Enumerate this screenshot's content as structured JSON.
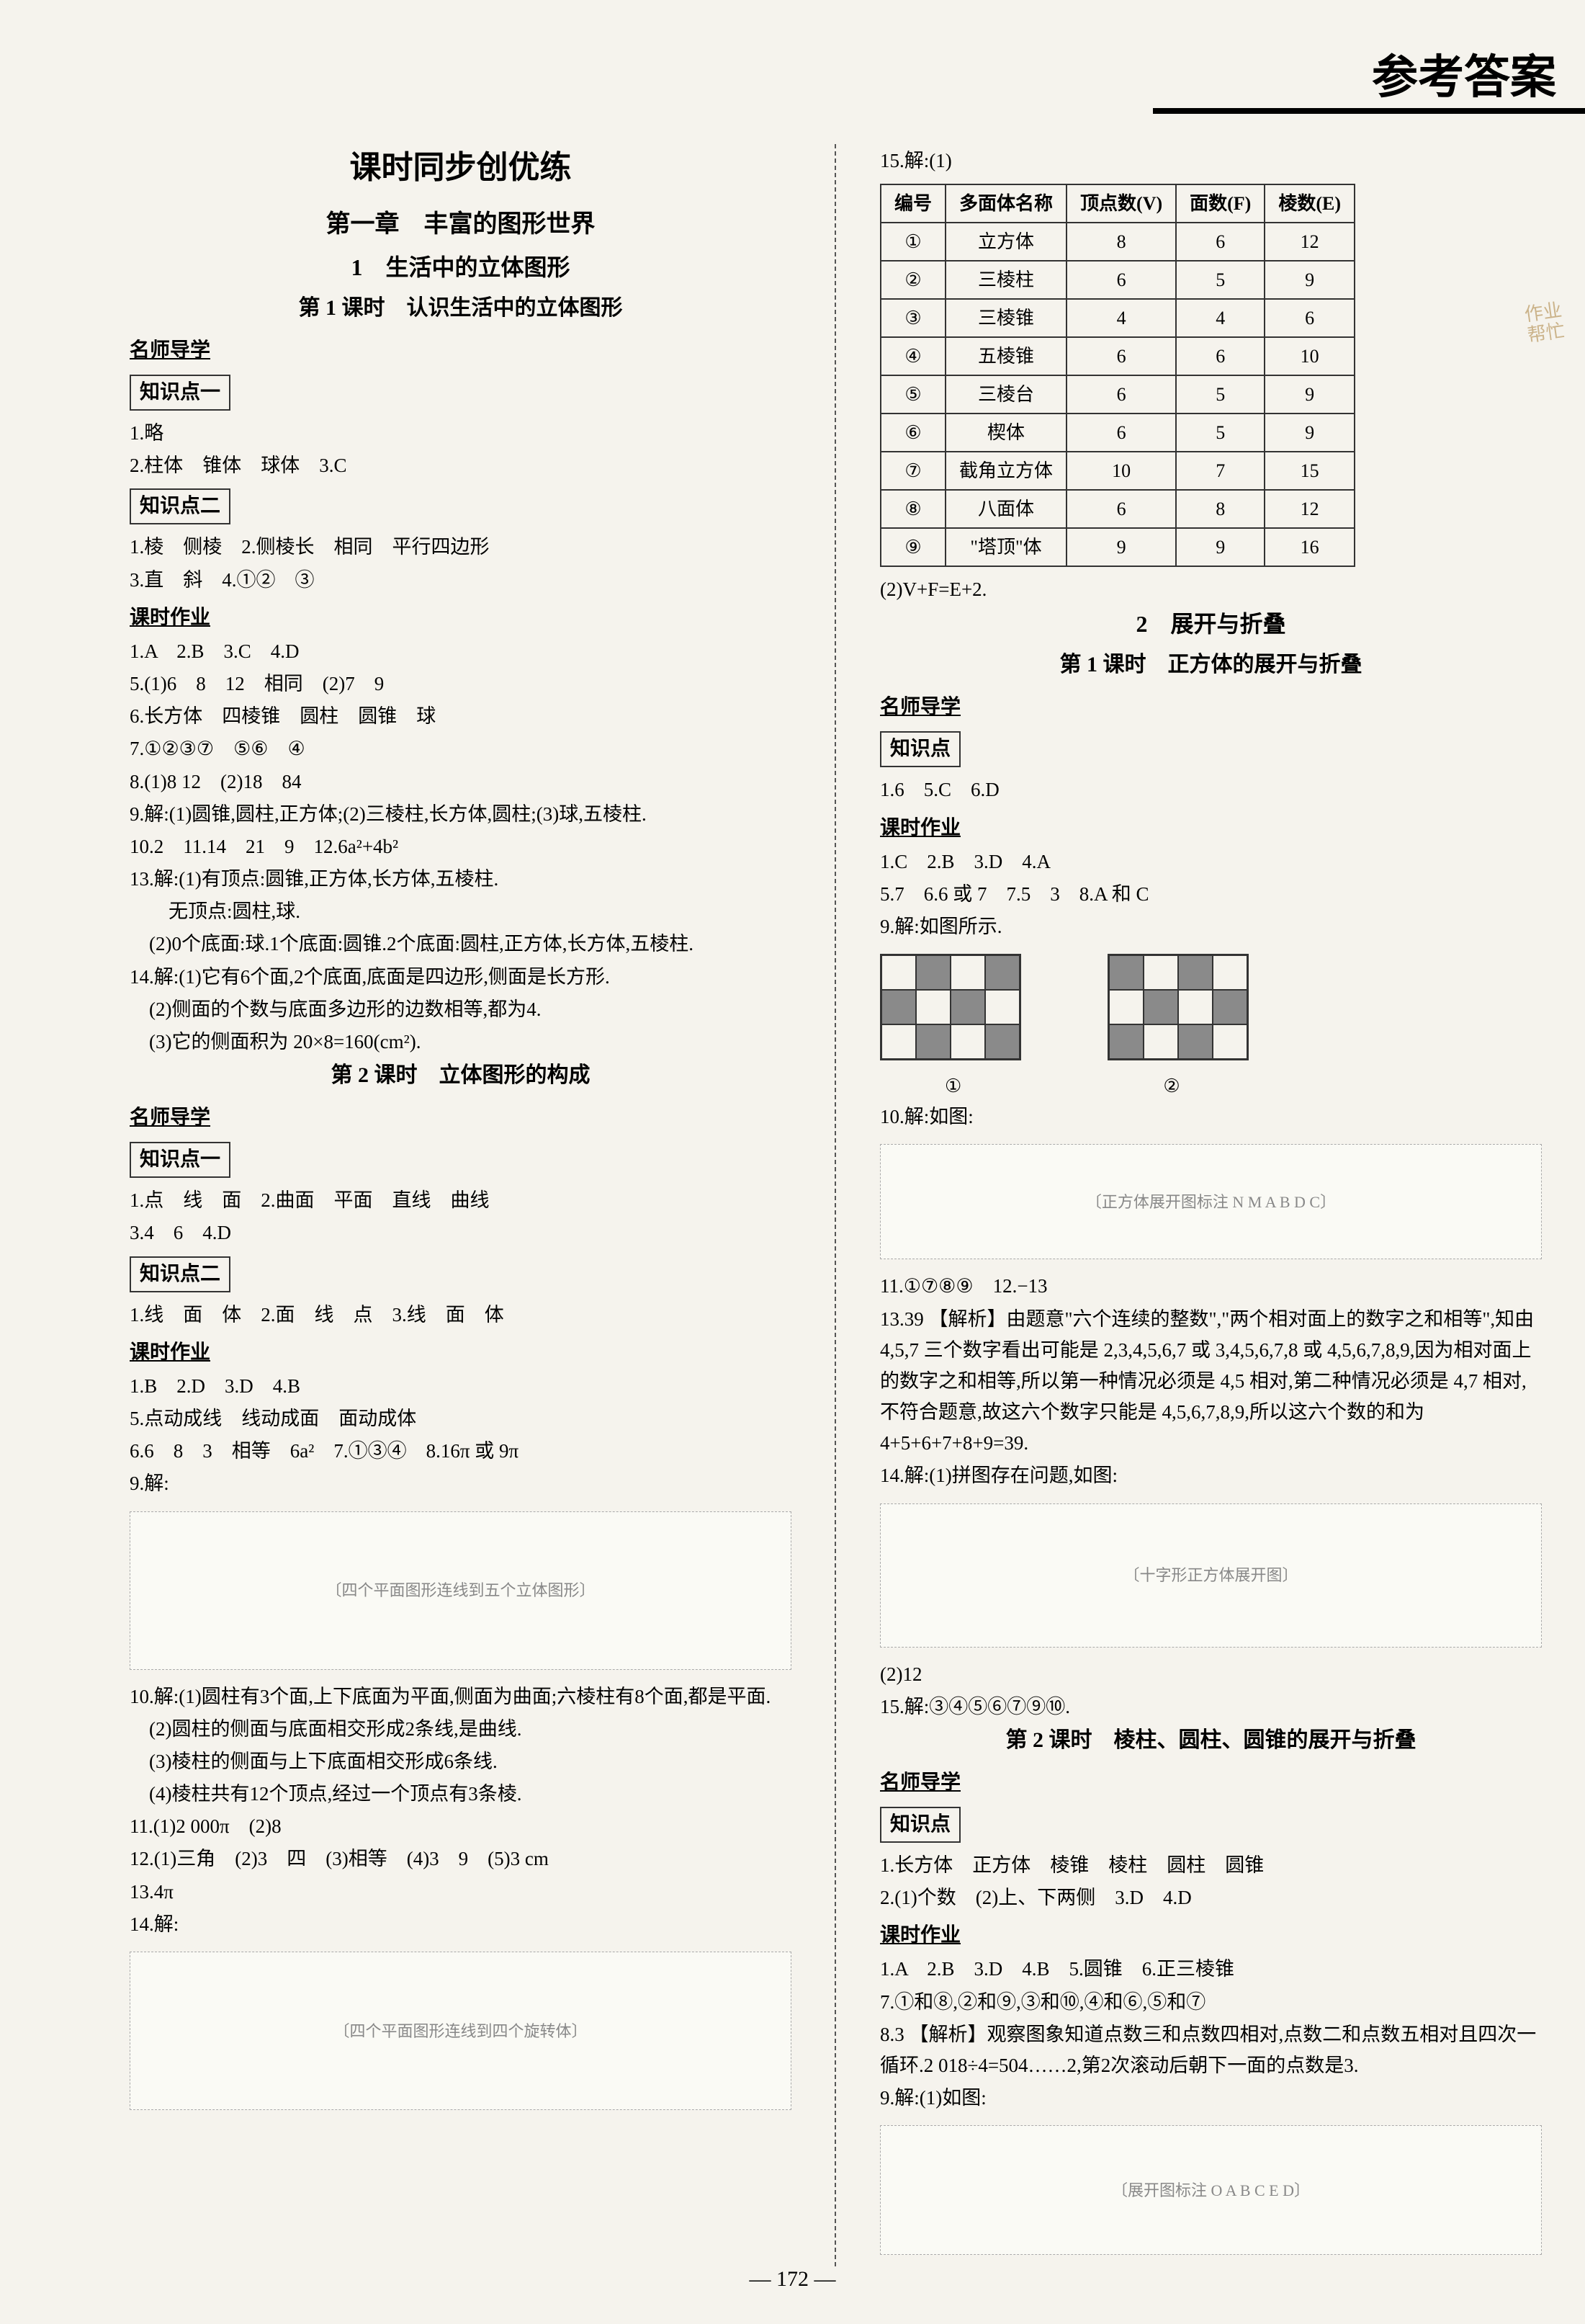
{
  "header": {
    "title": "参考答案"
  },
  "stamp": {
    "line1": "作业",
    "line2": "帮忙"
  },
  "left": {
    "main_title": "课时同步创优练",
    "chapter": "第一章　丰富的图形世界",
    "section1": "1　生活中的立体图形",
    "lesson1": "第 1 课时　认识生活中的立体图形",
    "msdx": "名师导学",
    "kp1": "知识点一",
    "l1_1": "1.略",
    "l1_2": "2.柱体　锥体　球体　3.C",
    "kp2": "知识点二",
    "l2_1": "1.棱　侧棱　2.侧棱长　相同　平行四边形",
    "l2_2": "3.直　斜　4.①②　③",
    "kszy": "课时作业",
    "hw": [
      "1.A　2.B　3.C　4.D",
      "5.(1)6　8　12　相同　(2)7　9",
      "6.长方体　四棱锥　圆柱　圆锥　球",
      "7.①②③⑦　⑤⑥　④",
      "8.(1)8 12　(2)18　84",
      "9.解:(1)圆锥,圆柱,正方体;(2)三棱柱,长方体,圆柱;(3)球,五棱柱.",
      "10.2　11.14　21　9　12.6a²+4b²",
      "13.解:(1)有顶点:圆锥,正方体,长方体,五棱柱.",
      "　　无顶点:圆柱,球.",
      "　(2)0个底面:球.1个底面:圆锥.2个底面:圆柱,正方体,长方体,五棱柱.",
      "14.解:(1)它有6个面,2个底面,底面是四边形,侧面是长方形.",
      "　(2)侧面的个数与底面多边形的边数相等,都为4.",
      "　(3)它的侧面积为 20×8=160(cm²)."
    ],
    "lesson2": "第 2 课时　立体图形的构成",
    "kp1b": "知识点一",
    "l4_1": "1.点　线　面　2.曲面　平面　直线　曲线",
    "l4_2": "3.4　6　4.D",
    "kp2b": "知识点二",
    "l5_1": "1.线　面　体　2.面　线　点　3.线　面　体",
    "hw2": [
      "1.B　2.D　3.D　4.B",
      "5.点动成线　线动成面　面动成体",
      "6.6　8　3　相等　6a²　7.①③④　8.16π 或 9π",
      "9.解:"
    ],
    "fig9": "〔四个平面图形连线到五个立体图形〕",
    "hw2b": [
      "10.解:(1)圆柱有3个面,上下底面为平面,侧面为曲面;六棱柱有8个面,都是平面.",
      "　(2)圆柱的侧面与底面相交形成2条线,是曲线.",
      "　(3)棱柱的侧面与上下底面相交形成6条线.",
      "　(4)棱柱共有12个顶点,经过一个顶点有3条棱.",
      "11.(1)2 000π　(2)8",
      "12.(1)三角　(2)3　四　(3)相等　(4)3　9　(5)3 cm",
      "13.4π",
      "14.解:"
    ],
    "fig14": "〔四个平面图形连线到四个旋转体〕"
  },
  "right": {
    "q15": "15.解:(1)",
    "table": {
      "headers": [
        "编号",
        "多面体名称",
        "顶点数(V)",
        "面数(F)",
        "棱数(E)"
      ],
      "rows": [
        [
          "①",
          "立方体",
          "8",
          "6",
          "12"
        ],
        [
          "②",
          "三棱柱",
          "6",
          "5",
          "9"
        ],
        [
          "③",
          "三棱锥",
          "4",
          "4",
          "6"
        ],
        [
          "④",
          "五棱锥",
          "6",
          "6",
          "10"
        ],
        [
          "⑤",
          "三棱台",
          "6",
          "5",
          "9"
        ],
        [
          "⑥",
          "楔体",
          "6",
          "5",
          "9"
        ],
        [
          "⑦",
          "截角立方体",
          "10",
          "7",
          "15"
        ],
        [
          "⑧",
          "八面体",
          "6",
          "8",
          "12"
        ],
        [
          "⑨",
          "\"塔顶\"体",
          "9",
          "9",
          "16"
        ]
      ]
    },
    "q15b": "(2)V+F=E+2.",
    "section2": "2　展开与折叠",
    "lesson1b": "第 1 课时　正方体的展开与折叠",
    "msdx": "名师导学",
    "kp": "知识点",
    "l1": "1.6　5.C　6.D",
    "kszy": "课时作业",
    "hw": [
      "1.C　2.B　3.D　4.A",
      "5.7　6.6 或 7　7.5　3　8.A 和 C",
      "9.解:如图所示."
    ],
    "net_labels": {
      "a": "①",
      "b": "②"
    },
    "q10": "10.解:如图:",
    "fig10": "〔正方体展开图标注 N M A B D C〕",
    "hw2": [
      "11.①⑦⑧⑨　12.−13",
      "13.39 【解析】由题意\"六个连续的整数\",\"两个相对面上的数字之和相等\",知由 4,5,7 三个数字看出可能是 2,3,4,5,6,7 或 3,4,5,6,7,8 或 4,5,6,7,8,9,因为相对面上的数字之和相等,所以第一种情况必须是 4,5 相对,第二种情况必须是 4,7 相对,不符合题意,故这六个数字只能是 4,5,6,7,8,9,所以这六个数的和为 4+5+6+7+8+9=39.",
      "14.解:(1)拼图存在问题,如图:"
    ],
    "fig14b": "〔十字形正方体展开图〕",
    "q14b": "(2)12",
    "q15c": "15.解:③④⑤⑥⑦⑨⑩.",
    "lesson2b": "第 2 课时　棱柱、圆柱、圆锥的展开与折叠",
    "kpR2": "知识点",
    "l2": [
      "1.长方体　正方体　棱锥　棱柱　圆柱　圆锥",
      "2.(1)个数　(2)上、下两侧　3.D　4.D"
    ],
    "hw3": [
      "1.A　2.B　3.D　4.B　5.圆锥　6.正三棱锥",
      "7.①和⑧,②和⑨,③和⑩,④和⑥,⑤和⑦",
      "8.3 【解析】观察图象知道点数三和点数四相对,点数二和点数五相对且四次一循环.2 018÷4=504……2,第2次滚动后朝下一面的点数是3.",
      "9.解:(1)如图:"
    ],
    "fig9b": "〔展开图标注 O A B C E D〕"
  },
  "style": {
    "bg": "#f5f3ed",
    "text": "#1a1a1a",
    "border": "#333333",
    "shaded": "#8a8a8a",
    "stamp": "#b08a4a"
  },
  "page_number": "— 172 —"
}
